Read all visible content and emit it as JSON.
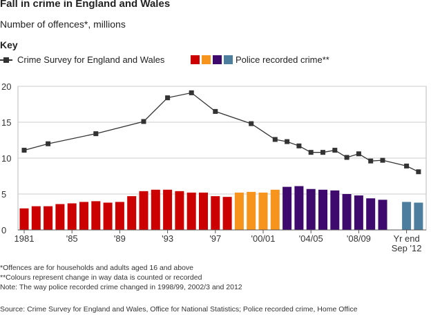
{
  "title": "Fall in crime in England and Wales",
  "subtitle": "Number of offences*, millions",
  "key_title": "Key",
  "legend": {
    "csew_label": "Crime Survey for England and Wales",
    "prc_label": "Police recorded crime**",
    "swatch_colors": [
      "#cc0000",
      "#f7941d",
      "#3f0a6e",
      "#4d7e9e"
    ]
  },
  "notes": [
    "*Offences are for households and adults aged 16 and above",
    "**Colours represent change in way data is counted or recorded",
    "Note: The way police recorded crime changed in 1998/99, 2002/3 and 2012"
  ],
  "source": "Source: Crime Survey for England and Wales, Office for National Statistics; Police recorded crime, Home Office",
  "chart_data": {
    "type": "bar",
    "title": "Fall in crime in England and Wales",
    "subtitle": "Number of offences*, millions",
    "ylim": [
      0,
      20
    ],
    "y_ticks": [
      "0",
      "5",
      "10",
      "15",
      "20"
    ],
    "x_tick_labels": [
      {
        "label": "1981",
        "slot": 0
      },
      {
        "label": "'85",
        "slot": 4
      },
      {
        "label": "'89",
        "slot": 8
      },
      {
        "label": "'93",
        "slot": 12
      },
      {
        "label": "'97",
        "slot": 16
      },
      {
        "label": "'00/01",
        "slot": 20
      },
      {
        "label": "'04/05",
        "slot": 24
      },
      {
        "label": "'08/09",
        "slot": 28
      },
      {
        "label": "Yr end\nSep '12",
        "slot": 32
      }
    ],
    "grid": true,
    "series": [
      {
        "name": "Police recorded crime**",
        "kind": "bar",
        "points": [
          {
            "slot": 0,
            "value": 3.0,
            "color": "#cc0000"
          },
          {
            "slot": 1,
            "value": 3.3,
            "color": "#cc0000"
          },
          {
            "slot": 2,
            "value": 3.3,
            "color": "#cc0000"
          },
          {
            "slot": 3,
            "value": 3.6,
            "color": "#cc0000"
          },
          {
            "slot": 4,
            "value": 3.7,
            "color": "#cc0000"
          },
          {
            "slot": 5,
            "value": 3.9,
            "color": "#cc0000"
          },
          {
            "slot": 6,
            "value": 4.0,
            "color": "#cc0000"
          },
          {
            "slot": 7,
            "value": 3.8,
            "color": "#cc0000"
          },
          {
            "slot": 8,
            "value": 3.9,
            "color": "#cc0000"
          },
          {
            "slot": 9,
            "value": 4.7,
            "color": "#cc0000"
          },
          {
            "slot": 10,
            "value": 5.4,
            "color": "#cc0000"
          },
          {
            "slot": 11,
            "value": 5.6,
            "color": "#cc0000"
          },
          {
            "slot": 12,
            "value": 5.6,
            "color": "#cc0000"
          },
          {
            "slot": 13,
            "value": 5.4,
            "color": "#cc0000"
          },
          {
            "slot": 14,
            "value": 5.2,
            "color": "#cc0000"
          },
          {
            "slot": 15,
            "value": 5.2,
            "color": "#cc0000"
          },
          {
            "slot": 16,
            "value": 4.7,
            "color": "#cc0000"
          },
          {
            "slot": 17,
            "value": 4.6,
            "color": "#cc0000"
          },
          {
            "slot": 18,
            "value": 5.2,
            "color": "#f7941d"
          },
          {
            "slot": 19,
            "value": 5.3,
            "color": "#f7941d"
          },
          {
            "slot": 20,
            "value": 5.2,
            "color": "#f7941d"
          },
          {
            "slot": 21,
            "value": 5.6,
            "color": "#f7941d"
          },
          {
            "slot": 22,
            "value": 6.0,
            "color": "#3f0a6e"
          },
          {
            "slot": 23,
            "value": 6.1,
            "color": "#3f0a6e"
          },
          {
            "slot": 24,
            "value": 5.7,
            "color": "#3f0a6e"
          },
          {
            "slot": 25,
            "value": 5.6,
            "color": "#3f0a6e"
          },
          {
            "slot": 26,
            "value": 5.5,
            "color": "#3f0a6e"
          },
          {
            "slot": 27,
            "value": 5.0,
            "color": "#3f0a6e"
          },
          {
            "slot": 28,
            "value": 4.8,
            "color": "#3f0a6e"
          },
          {
            "slot": 29,
            "value": 4.4,
            "color": "#3f0a6e"
          },
          {
            "slot": 30,
            "value": 4.2,
            "color": "#3f0a6e"
          },
          {
            "slot": 32,
            "value": 3.9,
            "color": "#4d7e9e"
          },
          {
            "slot": 33,
            "value": 3.8,
            "color": "#4d7e9e"
          }
        ]
      },
      {
        "name": "Crime Survey for England and Wales",
        "kind": "line",
        "color": "#333333",
        "points": [
          {
            "slot": 0,
            "value": 11.1
          },
          {
            "slot": 2,
            "value": 12.0
          },
          {
            "slot": 6,
            "value": 13.4
          },
          {
            "slot": 10,
            "value": 15.1
          },
          {
            "slot": 12,
            "value": 18.4
          },
          {
            "slot": 14,
            "value": 19.1
          },
          {
            "slot": 16,
            "value": 16.5
          },
          {
            "slot": 19,
            "value": 14.8
          },
          {
            "slot": 21,
            "value": 12.6
          },
          {
            "slot": 22,
            "value": 12.3
          },
          {
            "slot": 23,
            "value": 11.7
          },
          {
            "slot": 24,
            "value": 10.8
          },
          {
            "slot": 25,
            "value": 10.8
          },
          {
            "slot": 26,
            "value": 11.1
          },
          {
            "slot": 27,
            "value": 10.1
          },
          {
            "slot": 28,
            "value": 10.6
          },
          {
            "slot": 29,
            "value": 9.6
          },
          {
            "slot": 30,
            "value": 9.7
          },
          {
            "slot": 32,
            "value": 8.9
          },
          {
            "slot": 33,
            "value": 8.1
          }
        ]
      }
    ]
  }
}
